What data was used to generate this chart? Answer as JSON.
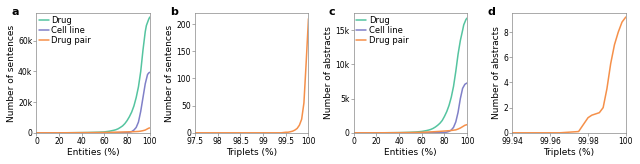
{
  "panel_a": {
    "label": "a",
    "xlabel": "Entities (%)",
    "ylabel": "Number of sentences",
    "xlim": [
      0,
      100
    ],
    "ylim": [
      0,
      78000
    ],
    "yticks": [
      0,
      20000,
      40000,
      60000
    ],
    "ytick_labels": [
      "0",
      "20k",
      "40k",
      "60k"
    ],
    "xticks": [
      0,
      20,
      40,
      60,
      80,
      100
    ],
    "xtick_labels": [
      "0",
      "20",
      "40",
      "60",
      "80",
      "100"
    ],
    "legend": [
      "Drug",
      "Cell line",
      "Drug pair"
    ],
    "colors": [
      "#55c4a0",
      "#8080c8",
      "#f5904a"
    ],
    "curves": {
      "drug": {
        "x": [
          0,
          5,
          10,
          15,
          20,
          25,
          30,
          35,
          40,
          45,
          50,
          55,
          60,
          62,
          64,
          66,
          68,
          70,
          72,
          74,
          76,
          78,
          80,
          82,
          84,
          86,
          88,
          90,
          92,
          94,
          96,
          97,
          98,
          99,
          100
        ],
        "y": [
          0,
          0,
          0,
          0,
          0,
          0,
          50,
          100,
          150,
          200,
          300,
          400,
          600,
          800,
          1000,
          1300,
          1600,
          2000,
          2600,
          3500,
          4500,
          6000,
          8000,
          10500,
          13500,
          17500,
          23000,
          30000,
          40000,
          54000,
          66000,
          70000,
          72000,
          74000,
          75500
        ]
      },
      "cell_line": {
        "x": [
          0,
          10,
          20,
          30,
          40,
          50,
          60,
          70,
          75,
          80,
          82,
          84,
          86,
          88,
          90,
          92,
          94,
          96,
          98,
          99,
          100
        ],
        "y": [
          0,
          0,
          0,
          0,
          0,
          0,
          0,
          50,
          100,
          200,
          400,
          800,
          1800,
          3500,
          7000,
          14000,
          23000,
          32000,
          38000,
          39000,
          39500
        ]
      },
      "drug_pair": {
        "x": [
          0,
          10,
          20,
          30,
          40,
          50,
          55,
          60,
          65,
          70,
          75,
          80,
          85,
          90,
          92,
          94,
          96,
          97,
          98,
          99,
          100
        ],
        "y": [
          0,
          0,
          0,
          50,
          100,
          150,
          200,
          250,
          300,
          400,
          500,
          600,
          700,
          900,
          1100,
          1400,
          1800,
          2200,
          2600,
          3000,
          3200
        ]
      }
    }
  },
  "panel_b": {
    "label": "b",
    "xlabel": "Triplets (%)",
    "ylabel": "Number of sentences",
    "xlim": [
      97.5,
      100
    ],
    "ylim": [
      0,
      220
    ],
    "yticks": [
      0,
      50,
      100,
      150,
      200
    ],
    "ytick_labels": [
      "0",
      "50",
      "100",
      "150",
      "200"
    ],
    "xticks": [
      97.5,
      98,
      98.5,
      99,
      99.5,
      100
    ],
    "xtick_labels": [
      "97.5",
      "98",
      "98.5",
      "99",
      "99.5",
      "100"
    ],
    "colors": [
      "#f5904a"
    ],
    "curves": {
      "drug_pair": {
        "x": [
          97.5,
          98.0,
          98.5,
          99.0,
          99.1,
          99.2,
          99.3,
          99.4,
          99.5,
          99.55,
          99.6,
          99.65,
          99.7,
          99.75,
          99.8,
          99.85,
          99.9,
          99.95,
          100.0
        ],
        "y": [
          0,
          0,
          0,
          0,
          0,
          0,
          0,
          0,
          1,
          1,
          2,
          3,
          5,
          8,
          14,
          25,
          55,
          130,
          210
        ]
      }
    }
  },
  "panel_c": {
    "label": "c",
    "xlabel": "Entities (%)",
    "ylabel": "Number of abstracts",
    "xlim": [
      0,
      100
    ],
    "ylim": [
      0,
      17500
    ],
    "yticks": [
      0,
      5000,
      10000,
      15000
    ],
    "ytick_labels": [
      "0",
      "5k",
      "10k",
      "15k"
    ],
    "xticks": [
      0,
      20,
      40,
      60,
      80,
      100
    ],
    "xtick_labels": [
      "0",
      "20",
      "40",
      "60",
      "80",
      "100"
    ],
    "legend": [
      "Drug",
      "Cell line",
      "Drug pair"
    ],
    "colors": [
      "#55c4a0",
      "#8080c8",
      "#f5904a"
    ],
    "curves": {
      "drug": {
        "x": [
          0,
          5,
          10,
          15,
          20,
          25,
          30,
          35,
          40,
          45,
          50,
          55,
          60,
          62,
          64,
          66,
          68,
          70,
          72,
          74,
          76,
          78,
          80,
          82,
          84,
          86,
          88,
          90,
          92,
          94,
          96,
          97,
          98,
          99,
          100
        ],
        "y": [
          0,
          0,
          0,
          0,
          0,
          0,
          10,
          20,
          30,
          50,
          80,
          120,
          200,
          260,
          320,
          400,
          500,
          650,
          850,
          1100,
          1400,
          1800,
          2400,
          3100,
          4000,
          5200,
          6800,
          9000,
          11500,
          13500,
          15000,
          15800,
          16200,
          16600,
          16800
        ]
      },
      "cell_line": {
        "x": [
          0,
          10,
          20,
          30,
          40,
          50,
          60,
          70,
          75,
          80,
          82,
          84,
          86,
          88,
          90,
          92,
          94,
          96,
          98,
          99,
          100
        ],
        "y": [
          0,
          0,
          0,
          0,
          0,
          0,
          0,
          10,
          20,
          50,
          100,
          200,
          400,
          800,
          1600,
          3000,
          5000,
          6500,
          7100,
          7200,
          7300
        ]
      },
      "drug_pair": {
        "x": [
          0,
          10,
          20,
          30,
          40,
          50,
          55,
          60,
          65,
          70,
          75,
          80,
          85,
          90,
          92,
          94,
          96,
          97,
          98,
          99,
          100
        ],
        "y": [
          0,
          0,
          0,
          10,
          20,
          40,
          60,
          80,
          110,
          150,
          200,
          260,
          320,
          430,
          550,
          700,
          900,
          1000,
          1100,
          1150,
          1200
        ]
      }
    }
  },
  "panel_d": {
    "label": "d",
    "xlabel": "Triplets (%)",
    "ylabel": "Number of abstracts",
    "xlim": [
      99.94,
      100.0
    ],
    "ylim": [
      0,
      9.5
    ],
    "yticks": [
      0,
      2,
      4,
      6,
      8
    ],
    "ytick_labels": [
      "0",
      "2",
      "4",
      "6",
      "8"
    ],
    "xticks": [
      99.94,
      99.96,
      99.98,
      100.0
    ],
    "xtick_labels": [
      "99.94",
      "99.96",
      "99.98",
      "100"
    ],
    "colors": [
      "#f5904a"
    ],
    "curves": {
      "drug_pair": {
        "x": [
          99.94,
          99.95,
          99.96,
          99.965,
          99.97,
          99.975,
          99.98,
          99.982,
          99.984,
          99.986,
          99.988,
          99.99,
          99.992,
          99.994,
          99.996,
          99.998,
          100.0
        ],
        "y": [
          0,
          0,
          0,
          0,
          0.05,
          0.1,
          1.2,
          1.4,
          1.5,
          1.6,
          2.0,
          3.5,
          5.5,
          7.0,
          8.0,
          8.8,
          9.2
        ]
      }
    }
  },
  "figure_bg": "#ffffff",
  "axes_bg": "#ffffff",
  "spine_color": "#888888",
  "tick_color": "#888888",
  "label_fontsize": 6.5,
  "tick_fontsize": 5.5,
  "legend_fontsize": 6.0,
  "panel_label_fontsize": 8,
  "line_width": 1.1
}
